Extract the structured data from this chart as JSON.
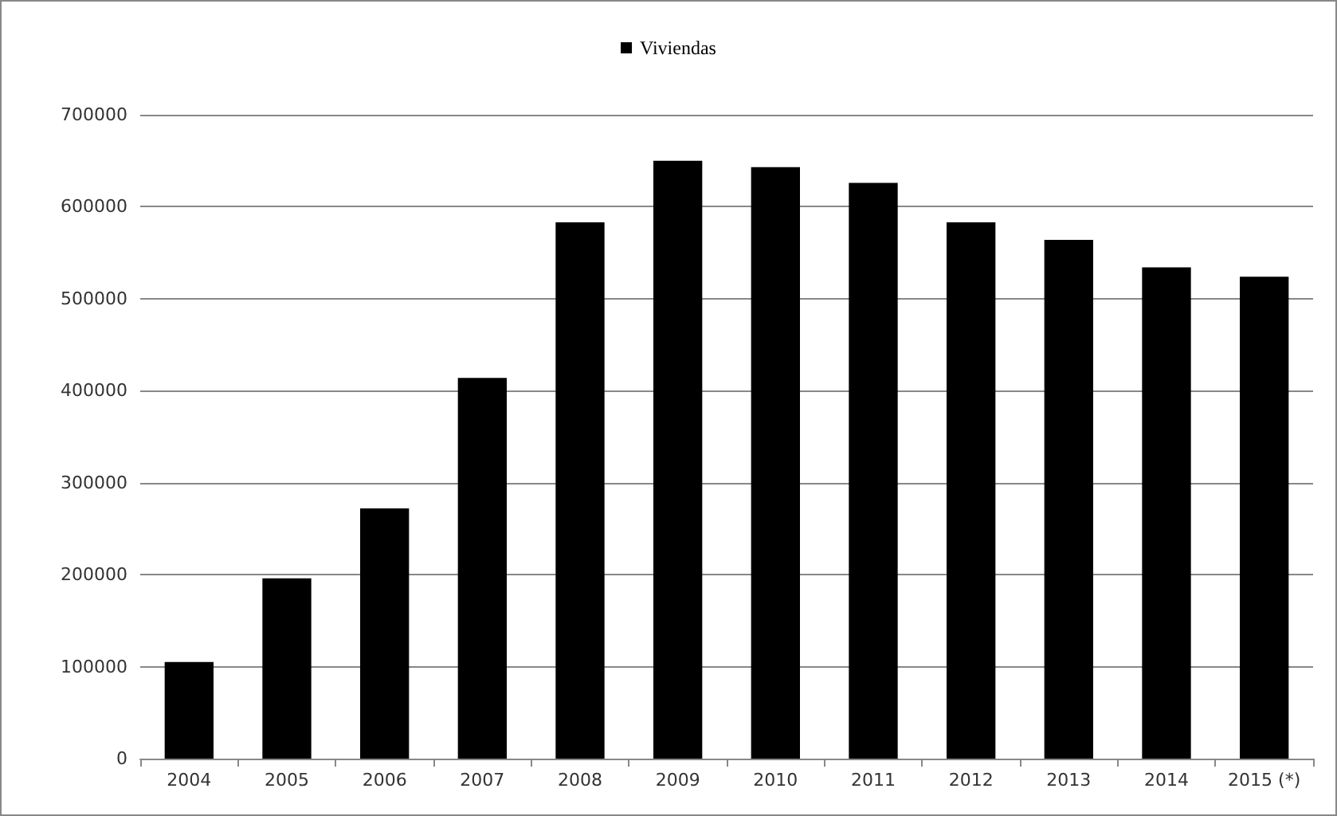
{
  "chart_data": {
    "type": "bar",
    "categories": [
      "2004",
      "2005",
      "2006",
      "2007",
      "2008",
      "2009",
      "2010",
      "2011",
      "2012",
      "2013",
      "2014",
      "2015 (*)"
    ],
    "series": [
      {
        "name": "Viviendas",
        "color": "#000000",
        "values": [
          105000,
          196000,
          272000,
          414000,
          583000,
          650000,
          643000,
          626000,
          583000,
          564000,
          534000,
          524000
        ]
      }
    ],
    "ylim": [
      0,
      700000
    ],
    "yticks": [
      0,
      100000,
      200000,
      300000,
      400000,
      500000,
      600000,
      700000
    ],
    "grid": "y",
    "legend": "top"
  }
}
